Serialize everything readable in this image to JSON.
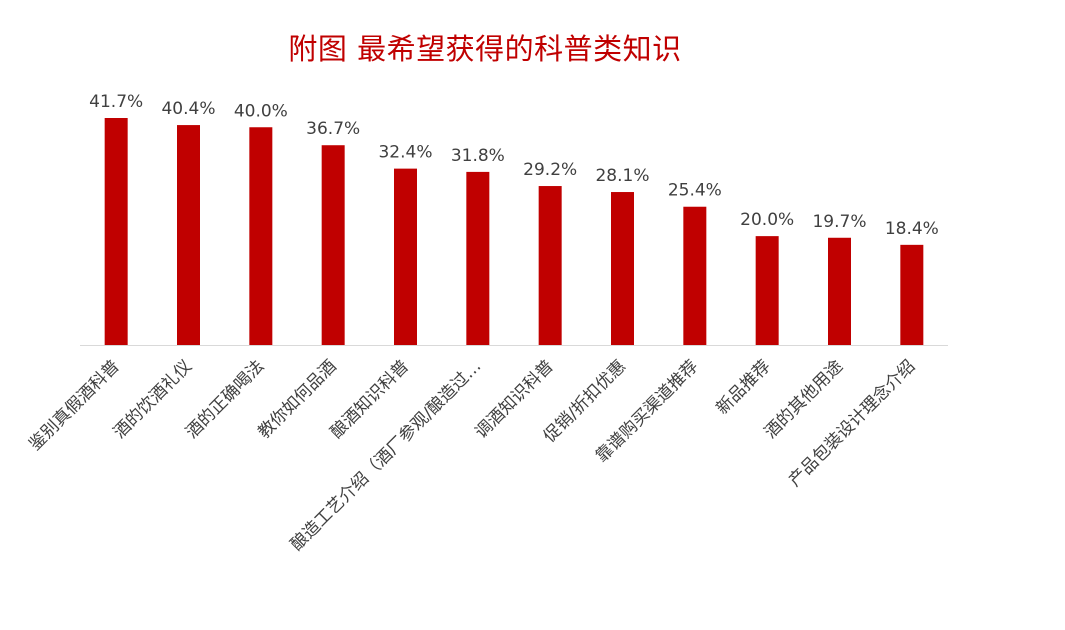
{
  "chart_data": {
    "type": "bar",
    "title": "附图  最希望获得的科普类知识",
    "categories": [
      "鉴别真假酒科普",
      "酒的饮酒礼仪",
      "酒的正确喝法",
      "教你如何品酒",
      "酿酒知识科普",
      "酿造工艺介绍（酒厂参观/酿造过…",
      "调酒知识科普",
      "促销/折扣优惠",
      "靠谱购买渠道推荐",
      "新品推荐",
      "酒的其他用途",
      "产品包装设计理念介绍"
    ],
    "values": [
      41.7,
      40.4,
      40.0,
      36.7,
      32.4,
      31.8,
      29.2,
      28.1,
      25.4,
      20.0,
      19.7,
      18.4
    ],
    "data_labels": [
      "41.7%",
      "40.4%",
      "40.0%",
      "36.7%",
      "32.4%",
      "31.8%",
      "29.2%",
      "28.1%",
      "25.4%",
      "20.0%",
      "19.7%",
      "18.4%"
    ],
    "ylim": [
      0,
      41.7
    ],
    "bar_color": "#c00000",
    "label_color": "#404040",
    "axis_color": "#d9d9d9",
    "grid": false,
    "legend": "none"
  }
}
